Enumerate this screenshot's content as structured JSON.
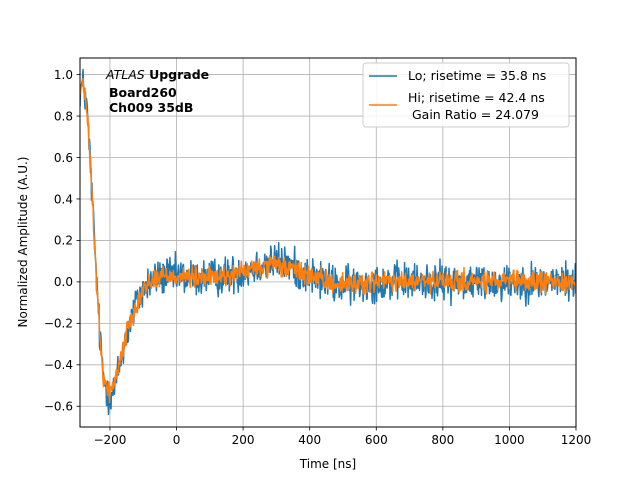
{
  "chart_data": {
    "type": "line",
    "xlabel": "Time [ns]",
    "ylabel": "Normalized Amplitude (A.U.)",
    "xlim": [
      -290,
      1200
    ],
    "ylim": [
      -0.7,
      1.08
    ],
    "xticks": [
      -200,
      0,
      200,
      400,
      600,
      800,
      1000,
      1200
    ],
    "yticks": [
      -0.6,
      -0.4,
      -0.2,
      0.0,
      0.2,
      0.4,
      0.6,
      0.8,
      1.0
    ],
    "grid": true,
    "legend_position": "top-right",
    "annotation": {
      "line1_italic": "ATLAS",
      "line1_bold": " Upgrade",
      "line2": "Board260",
      "line3": "Ch009 35dB"
    },
    "series": [
      {
        "name": "Lo; risetime = 35.8 ns",
        "color": "#1f77b4",
        "noise": 0.045,
        "envelope": {
          "x": [
            -290,
            -280,
            -270,
            -260,
            -250,
            -240,
            -230,
            -220,
            -210,
            -200,
            -190,
            -180,
            -170,
            -160,
            -150,
            -140,
            -120,
            -100,
            -80,
            -60,
            -40,
            -20,
            0,
            50,
            100,
            150,
            200,
            250,
            300,
            350,
            400,
            450,
            500,
            600,
            700,
            800,
            900,
            1000,
            1100,
            1200
          ],
          "y": [
            0.93,
            0.95,
            0.85,
            0.6,
            0.3,
            0.0,
            -0.28,
            -0.45,
            -0.52,
            -0.55,
            -0.53,
            -0.47,
            -0.4,
            -0.33,
            -0.26,
            -0.2,
            -0.1,
            -0.04,
            0.0,
            0.02,
            0.03,
            0.03,
            0.03,
            0.02,
            0.02,
            0.03,
            0.05,
            0.08,
            0.1,
            0.07,
            0.03,
            0.0,
            -0.02,
            0.0,
            0.0,
            0.0,
            0.0,
            0.0,
            0.0,
            0.0
          ]
        }
      },
      {
        "name": "Hi; risetime = 42.4 ns\n Gain Ratio = 24.079",
        "color": "#ff7f0e",
        "noise": 0.025,
        "envelope": {
          "x": [
            -290,
            -280,
            -270,
            -260,
            -250,
            -240,
            -230,
            -220,
            -210,
            -200,
            -190,
            -180,
            -170,
            -160,
            -150,
            -140,
            -120,
            -100,
            -80,
            -60,
            -40,
            -20,
            0,
            50,
            100,
            150,
            200,
            250,
            300,
            350,
            400,
            450,
            500,
            600,
            700,
            800,
            900,
            1000,
            1100,
            1200
          ],
          "y": [
            0.92,
            0.94,
            0.84,
            0.6,
            0.3,
            0.0,
            -0.28,
            -0.45,
            -0.51,
            -0.53,
            -0.5,
            -0.45,
            -0.38,
            -0.31,
            -0.25,
            -0.19,
            -0.1,
            -0.04,
            0.0,
            0.02,
            0.03,
            0.03,
            0.03,
            0.02,
            0.02,
            0.03,
            0.05,
            0.07,
            0.08,
            0.06,
            0.03,
            0.0,
            -0.01,
            0.0,
            0.0,
            0.0,
            0.0,
            0.0,
            0.0,
            0.0
          ]
        }
      }
    ]
  }
}
